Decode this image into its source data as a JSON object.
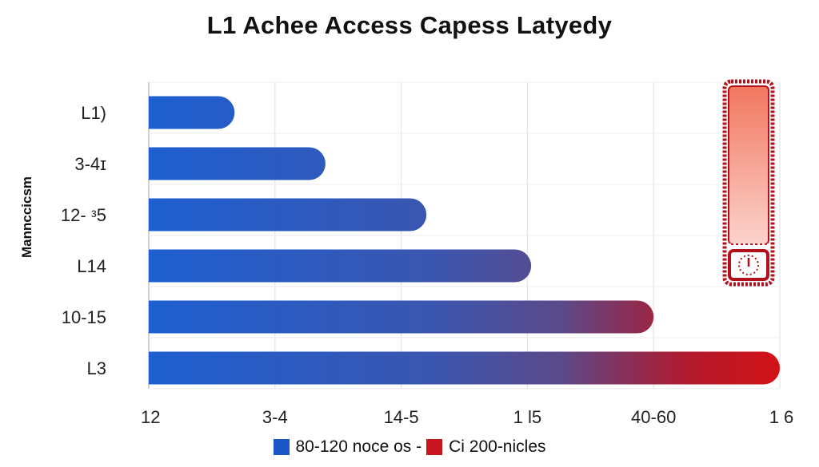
{
  "chart_data": {
    "type": "bar",
    "orientation": "horizontal",
    "title": "L1 Achee Access Capess Latyedy",
    "ylabel": "Mannccicsm",
    "xlabel": "",
    "categories": [
      "L1)",
      "3-4ɪ",
      "12- ᵌ5",
      "L14",
      "10-15",
      "L3"
    ],
    "values": [
      0.68,
      1.4,
      2.2,
      3.03,
      4.0,
      5.0
    ],
    "x_ticks": [
      "12",
      "3-4",
      "14-5",
      "1 l5",
      "40-60",
      "1 6"
    ],
    "xlim": [
      0,
      5
    ],
    "grid": true,
    "legend": {
      "position": "bottom",
      "entries": [
        {
          "label": "80-120 noce os -",
          "color": "#1a56c9"
        },
        {
          "label": "Ci 200-nicles",
          "color": "#c8161d"
        }
      ]
    },
    "colors": {
      "bar_start": "#1d5fd0",
      "bar_mid": "#3f4f9e",
      "bar_end": "#d31215",
      "highlight": "#b0111b"
    }
  }
}
